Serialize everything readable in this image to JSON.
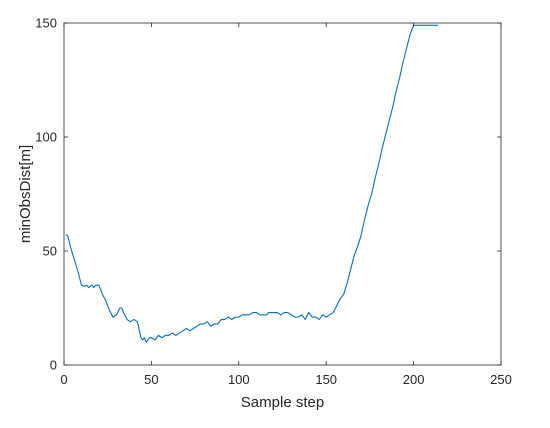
{
  "chart_data": {
    "type": "line",
    "title": "",
    "xlabel": "Sample step",
    "ylabel": "minObsDist[m]",
    "xlim": [
      0,
      250
    ],
    "ylim": [
      0,
      150
    ],
    "xticks": [
      0,
      50,
      100,
      150,
      200,
      250
    ],
    "yticks": [
      0,
      50,
      100,
      150
    ],
    "grid": false,
    "legend": "none",
    "series": [
      {
        "color": "#0072BD",
        "x": [
          1,
          2,
          4,
          6,
          8,
          10,
          12,
          13,
          14,
          15,
          16,
          17,
          18,
          19,
          20,
          22,
          24,
          26,
          28,
          30,
          32,
          33,
          34,
          36,
          38,
          40,
          42,
          44,
          45,
          46,
          47,
          48,
          49,
          50,
          52,
          54,
          56,
          58,
          60,
          62,
          64,
          66,
          68,
          70,
          72,
          74,
          76,
          78,
          80,
          82,
          84,
          86,
          88,
          90,
          92,
          94,
          96,
          98,
          100,
          102,
          104,
          106,
          108,
          110,
          112,
          114,
          116,
          117,
          118,
          120,
          122,
          124,
          126,
          128,
          130,
          132,
          134,
          136,
          138,
          140,
          142,
          144,
          146,
          148,
          150,
          152,
          154,
          156,
          158,
          160,
          162,
          164,
          166,
          168,
          170,
          172,
          174,
          176,
          178,
          180,
          182,
          184,
          186,
          188,
          190,
          192,
          194,
          196,
          198,
          200,
          202,
          204,
          206,
          208,
          210,
          212,
          214
        ],
        "y": [
          57,
          57,
          51,
          46,
          41,
          35,
          34.5,
          35,
          34,
          34.5,
          35,
          34,
          35,
          35,
          35,
          31,
          28,
          24,
          21,
          22,
          25,
          25,
          23,
          20,
          19,
          20,
          19,
          12,
          11,
          12,
          10,
          11,
          12,
          12,
          11,
          13,
          12,
          13,
          13,
          14,
          13,
          14,
          15,
          16,
          15,
          16,
          17,
          18,
          18,
          19,
          17,
          18,
          18,
          20,
          20,
          21,
          20,
          21,
          21,
          22,
          22,
          22,
          23,
          23,
          22,
          22,
          22,
          23,
          23,
          23,
          23,
          22,
          23,
          23,
          22,
          21,
          21,
          22,
          20,
          23,
          21,
          21,
          20,
          22,
          21,
          22,
          23,
          26,
          29,
          31,
          36,
          42,
          48,
          52,
          57,
          64,
          70,
          75,
          82,
          88,
          95,
          101,
          107,
          113,
          120,
          126,
          133,
          139,
          145,
          149,
          149,
          149,
          149,
          149,
          149,
          149,
          149
        ],
        "note": ""
      }
    ]
  }
}
